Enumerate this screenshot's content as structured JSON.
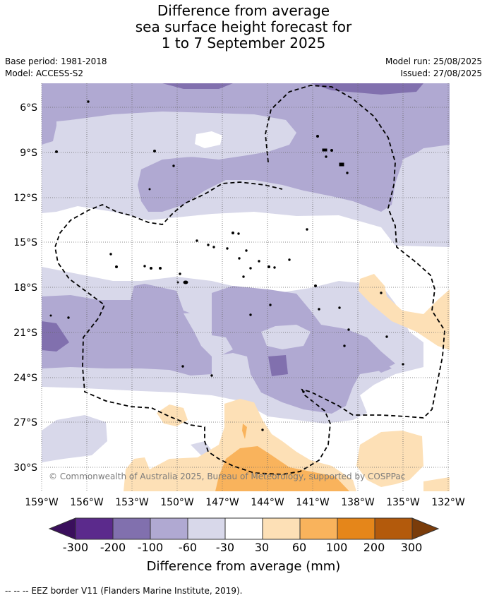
{
  "title_lines": [
    "Difference from average",
    "sea surface height forecast for",
    "1 to 7 September 2025"
  ],
  "meta": {
    "base_period": "Base period: 1981-2018",
    "model": "Model: ACCESS-S2",
    "model_run": "Model run: 25/08/2025",
    "issued": "Issued: 27/08/2025"
  },
  "map": {
    "lat_labels": [
      "6°S",
      "9°S",
      "12°S",
      "15°S",
      "18°S",
      "21°S",
      "24°S",
      "27°S",
      "30°S"
    ],
    "lon_labels": [
      "159°W",
      "156°W",
      "153°W",
      "150°W",
      "147°W",
      "144°W",
      "141°W",
      "138°W",
      "135°W",
      "132°W"
    ],
    "copyright": "© Commonwealth of Australia 2025, Bureau of Meteorology, supported by COSPPac"
  },
  "colorbar": {
    "title": "Difference from average (mm)",
    "labels": [
      "-300",
      "-200",
      "-100",
      "-60",
      "-30",
      "30",
      "60",
      "100",
      "200",
      "300"
    ],
    "colors": [
      "#3a0f5c",
      "#5b2a8c",
      "#8170ae",
      "#b0a9d2",
      "#d8d8ea",
      "#ffffff",
      "#fde0b6",
      "#f9b35c",
      "#e5861a",
      "#b35a0c",
      "#7a3c0a"
    ]
  },
  "footnote": "-- -- -- EEZ border V11 (Flanders Marine Institute, 2019)."
}
